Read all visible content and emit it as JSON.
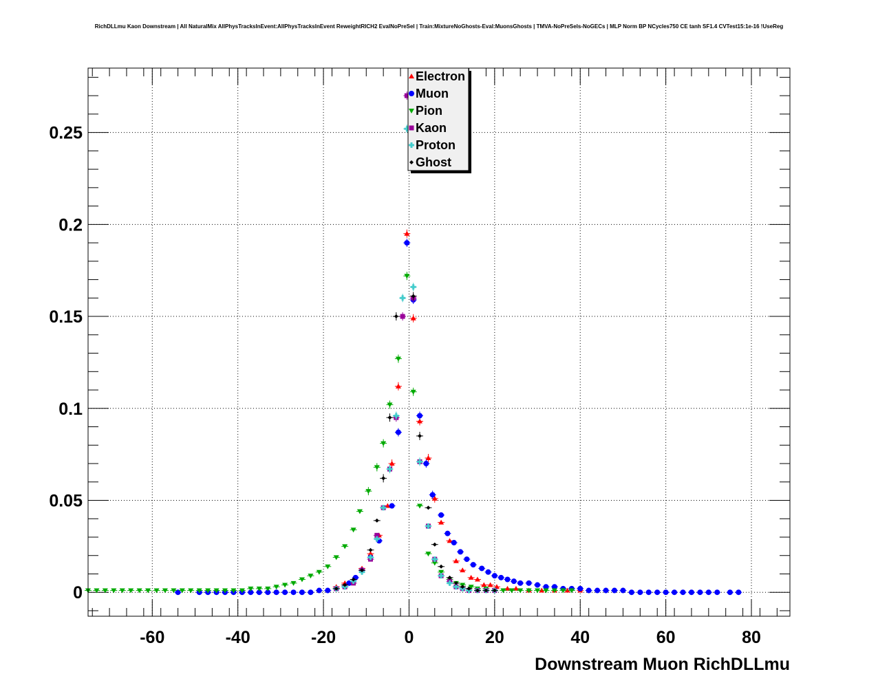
{
  "chart_data": {
    "type": "scatter",
    "title": "RichDLLmu Kaon Downstream | All NaturalMix AllPhysTracksInEvent:AllPhysTracksInEvent ReweightRICH2 EvalNoPreSel | Train:MixtureNoGhosts-Eval:MuonsGhosts | TMVA-NoPreSels-NoGECs | MLP Norm BP NCycles750 CE tanh SF1.4 CVTest15:1e-16 !UseReg",
    "xlabel": "Downstream Muon RichDLLmu",
    "ylabel": "",
    "xlim": [
      -75,
      89
    ],
    "ylim": [
      -0.013,
      0.285
    ],
    "xticks": [
      "-60",
      "-40",
      "-20",
      "0",
      "20",
      "40",
      "60",
      "80"
    ],
    "yticks": [
      "0",
      "0.05",
      "0.1",
      "0.15",
      "0.2",
      "0.25"
    ],
    "grid": true,
    "legend_position": "top-center",
    "series": [
      {
        "name": "Electron",
        "color": "#ff0000",
        "marker": "triangle-up",
        "points": [
          [
            -17,
            0.003
          ],
          [
            -15,
            0.005
          ],
          [
            -13,
            0.007
          ],
          [
            -11,
            0.013
          ],
          [
            -9,
            0.021
          ],
          [
            -7,
            0.031
          ],
          [
            -5,
            0.047
          ],
          [
            -4,
            0.07
          ],
          [
            -2.5,
            0.112
          ],
          [
            -0.5,
            0.195
          ],
          [
            1,
            0.149
          ],
          [
            2.5,
            0.093
          ],
          [
            4.5,
            0.073
          ],
          [
            6,
            0.051
          ],
          [
            7.5,
            0.038
          ],
          [
            9.5,
            0.028
          ],
          [
            11,
            0.017
          ],
          [
            12.5,
            0.012
          ],
          [
            14.5,
            0.008
          ],
          [
            16,
            0.007
          ],
          [
            17.5,
            0.004
          ],
          [
            19,
            0.004
          ],
          [
            20.5,
            0.003
          ],
          [
            23,
            0.002
          ],
          [
            25,
            0.002
          ],
          [
            28,
            0.001
          ],
          [
            31,
            0.001
          ],
          [
            34,
            0.001
          ],
          [
            37,
            0.001
          ],
          [
            40,
            0.001
          ]
        ]
      },
      {
        "name": "Muon",
        "color": "#0000ff",
        "marker": "circle",
        "points": [
          [
            -54,
            0.0
          ],
          [
            -49,
            0.0
          ],
          [
            -47,
            0.0
          ],
          [
            -45,
            0.0
          ],
          [
            -43,
            0.0
          ],
          [
            -41,
            0.0
          ],
          [
            -39,
            0.0
          ],
          [
            -37,
            0.0
          ],
          [
            -35,
            0.0
          ],
          [
            -33,
            0.0
          ],
          [
            -31,
            0.0
          ],
          [
            -29,
            0.0
          ],
          [
            -27,
            0.0
          ],
          [
            -25,
            0.0
          ],
          [
            -23,
            0.0
          ],
          [
            -21,
            0.001
          ],
          [
            -19,
            0.001
          ],
          [
            -17,
            0.002
          ],
          [
            -15,
            0.003
          ],
          [
            -14,
            0.005
          ],
          [
            -12.5,
            0.008
          ],
          [
            -11,
            0.012
          ],
          [
            -9,
            0.019
          ],
          [
            -7,
            0.028
          ],
          [
            -4,
            0.047
          ],
          [
            -2.5,
            0.087
          ],
          [
            -0.5,
            0.19
          ],
          [
            1,
            0.159
          ],
          [
            2.5,
            0.096
          ],
          [
            4,
            0.07
          ],
          [
            5.5,
            0.053
          ],
          [
            7.5,
            0.042
          ],
          [
            9,
            0.032
          ],
          [
            10.5,
            0.027
          ],
          [
            12,
            0.022
          ],
          [
            13.5,
            0.018
          ],
          [
            15,
            0.015
          ],
          [
            17,
            0.013
          ],
          [
            18.5,
            0.011
          ],
          [
            20,
            0.009
          ],
          [
            21.5,
            0.008
          ],
          [
            23,
            0.007
          ],
          [
            24.5,
            0.006
          ],
          [
            26,
            0.005
          ],
          [
            28,
            0.005
          ],
          [
            30,
            0.004
          ],
          [
            32,
            0.003
          ],
          [
            34,
            0.003
          ],
          [
            36,
            0.002
          ],
          [
            38,
            0.002
          ],
          [
            40,
            0.002
          ],
          [
            42,
            0.001
          ],
          [
            44,
            0.001
          ],
          [
            46,
            0.001
          ],
          [
            48,
            0.001
          ],
          [
            50,
            0.001
          ],
          [
            52,
            0.0
          ],
          [
            54,
            0.0
          ],
          [
            56,
            0.0
          ],
          [
            58,
            0.0
          ],
          [
            60,
            0.0
          ],
          [
            62,
            0.0
          ],
          [
            64,
            0.0
          ],
          [
            66,
            0.0
          ],
          [
            68,
            0.0
          ],
          [
            70,
            0.0
          ],
          [
            72,
            0.0
          ],
          [
            75,
            0.0
          ],
          [
            77,
            0.0
          ]
        ]
      },
      {
        "name": "Pion",
        "color": "#00aa00",
        "marker": "triangle-down",
        "points": [
          [
            -75,
            0.001
          ],
          [
            -73,
            0.001
          ],
          [
            -71,
            0.001
          ],
          [
            -69,
            0.001
          ],
          [
            -67,
            0.001
          ],
          [
            -65,
            0.001
          ],
          [
            -63,
            0.001
          ],
          [
            -61,
            0.001
          ],
          [
            -59,
            0.001
          ],
          [
            -57,
            0.001
          ],
          [
            -55,
            0.001
          ],
          [
            -53,
            0.001
          ],
          [
            -51,
            0.001
          ],
          [
            -49,
            0.001
          ],
          [
            -47,
            0.001
          ],
          [
            -45,
            0.001
          ],
          [
            -43,
            0.001
          ],
          [
            -41,
            0.001
          ],
          [
            -39,
            0.001
          ],
          [
            -37,
            0.002
          ],
          [
            -35,
            0.002
          ],
          [
            -33,
            0.002
          ],
          [
            -31,
            0.003
          ],
          [
            -29,
            0.004
          ],
          [
            -27,
            0.005
          ],
          [
            -25,
            0.007
          ],
          [
            -23,
            0.009
          ],
          [
            -21,
            0.011
          ],
          [
            -19,
            0.014
          ],
          [
            -17,
            0.019
          ],
          [
            -15,
            0.025
          ],
          [
            -13,
            0.034
          ],
          [
            -11.5,
            0.044
          ],
          [
            -9.5,
            0.055
          ],
          [
            -7.5,
            0.068
          ],
          [
            -6,
            0.081
          ],
          [
            -4.5,
            0.102
          ],
          [
            -2.5,
            0.127
          ],
          [
            -0.5,
            0.172
          ],
          [
            1,
            0.109
          ],
          [
            2.5,
            0.047
          ],
          [
            4.5,
            0.021
          ],
          [
            6,
            0.016
          ],
          [
            7.5,
            0.011
          ],
          [
            9.5,
            0.007
          ],
          [
            11,
            0.005
          ],
          [
            12.5,
            0.004
          ],
          [
            14.5,
            0.003
          ],
          [
            16,
            0.002
          ],
          [
            18,
            0.002
          ],
          [
            20,
            0.001
          ],
          [
            22,
            0.001
          ],
          [
            24,
            0.001
          ],
          [
            26,
            0.001
          ],
          [
            28,
            0.001
          ],
          [
            30,
            0.001
          ],
          [
            32,
            0.001
          ],
          [
            34,
            0.001
          ],
          [
            36,
            0.001
          ],
          [
            38,
            0.001
          ]
        ]
      },
      {
        "name": "Kaon",
        "color": "#990099",
        "marker": "square",
        "points": [
          [
            -17,
            0.002
          ],
          [
            -15,
            0.003
          ],
          [
            -13,
            0.005
          ],
          [
            -11,
            0.012
          ],
          [
            -9,
            0.018
          ],
          [
            -7.5,
            0.031
          ],
          [
            -6,
            0.046
          ],
          [
            -4.5,
            0.067
          ],
          [
            -3,
            0.095
          ],
          [
            -1.5,
            0.15
          ],
          [
            -0.5,
            0.27
          ],
          [
            1,
            0.16
          ],
          [
            2.5,
            0.071
          ],
          [
            4.5,
            0.036
          ],
          [
            6,
            0.018
          ],
          [
            7.5,
            0.009
          ],
          [
            9.5,
            0.006
          ],
          [
            11,
            0.003
          ],
          [
            12.5,
            0.002
          ],
          [
            14,
            0.001
          ],
          [
            16,
            0.001
          ],
          [
            18,
            0.001
          ],
          [
            20,
            0.001
          ]
        ]
      },
      {
        "name": "Proton",
        "color": "#44cccc",
        "marker": "cross",
        "points": [
          [
            -17,
            0.002
          ],
          [
            -15,
            0.003
          ],
          [
            -13,
            0.006
          ],
          [
            -11,
            0.011
          ],
          [
            -9,
            0.019
          ],
          [
            -7.5,
            0.029
          ],
          [
            -6,
            0.046
          ],
          [
            -4.5,
            0.067
          ],
          [
            -3,
            0.096
          ],
          [
            -1.5,
            0.16
          ],
          [
            -0.5,
            0.252
          ],
          [
            1,
            0.166
          ],
          [
            2.5,
            0.071
          ],
          [
            4.5,
            0.036
          ],
          [
            6,
            0.018
          ],
          [
            7.5,
            0.009
          ],
          [
            9.5,
            0.005
          ],
          [
            11,
            0.003
          ],
          [
            12.5,
            0.002
          ],
          [
            14,
            0.001
          ],
          [
            16,
            0.001
          ],
          [
            18,
            0.001
          ],
          [
            20,
            0.001
          ]
        ]
      },
      {
        "name": "Ghost",
        "color": "#000000",
        "marker": "diamond",
        "points": [
          [
            -17,
            0.002
          ],
          [
            -15,
            0.004
          ],
          [
            -13,
            0.007
          ],
          [
            -11,
            0.012
          ],
          [
            -9,
            0.023
          ],
          [
            -7.5,
            0.039
          ],
          [
            -6,
            0.062
          ],
          [
            -4.5,
            0.095
          ],
          [
            -3,
            0.15
          ],
          [
            1,
            0.161
          ],
          [
            2.5,
            0.085
          ],
          [
            4.5,
            0.046
          ],
          [
            6,
            0.026
          ],
          [
            7.5,
            0.014
          ],
          [
            9.5,
            0.008
          ],
          [
            11,
            0.005
          ],
          [
            12.5,
            0.003
          ],
          [
            14,
            0.002
          ],
          [
            16,
            0.001
          ],
          [
            18,
            0.001
          ],
          [
            20,
            0.001
          ]
        ]
      }
    ]
  }
}
